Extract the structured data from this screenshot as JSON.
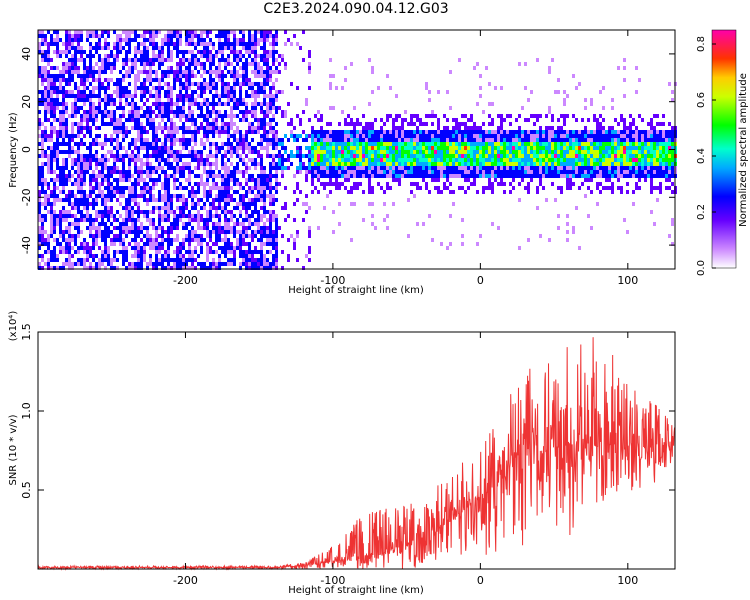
{
  "title": "C2E3.2024.090.04.12.G03",
  "chart_data": [
    {
      "type": "heatmap",
      "xlabel": "Height of straight line (km)",
      "ylabel": "Frequency (Hz)",
      "xlim": [
        -300,
        132
      ],
      "ylim": [
        -50,
        50
      ],
      "x_ticks": [
        -200,
        -100,
        0,
        100
      ],
      "y_ticks": [
        -40,
        -20,
        0,
        20,
        40
      ],
      "colorbar": {
        "label": "Normalized spectral amplitude",
        "range": [
          0,
          0.85
        ],
        "ticks": [
          "0.0",
          "0.2",
          "0.4",
          "0.6",
          "0.8"
        ],
        "tick_values": [
          0,
          0.2,
          0.4,
          0.6,
          0.8
        ]
      },
      "description_bands": [
        {
          "x": [
            -300,
            -138
          ],
          "y": [
            -50,
            50
          ],
          "level": 0.1
        },
        {
          "x": [
            -138,
            132
          ],
          "y": [
            -8,
            6
          ],
          "level": 0.35
        }
      ]
    },
    {
      "type": "line",
      "xlabel": "Height of straight line (km)",
      "ylabel": "SNR (10 * v/v)",
      "y_multiplier": "(x10⁴)",
      "xlim": [
        -300,
        132
      ],
      "ylim": [
        0,
        1.5
      ],
      "x_ticks": [
        -200,
        -100,
        0,
        100
      ],
      "y_ticks": [
        "0.5",
        "1.0",
        "1.5"
      ],
      "y_tick_values": [
        0.5,
        1.0,
        1.5
      ],
      "color": "#ee3333",
      "envelope": {
        "x": [
          -300,
          -140,
          -120,
          -100,
          -80,
          -60,
          -40,
          -20,
          0,
          20,
          30,
          40,
          60,
          80,
          100,
          132
        ],
        "mean": [
          0.01,
          0.01,
          0.02,
          0.05,
          0.08,
          0.12,
          0.2,
          0.3,
          0.45,
          0.62,
          0.8,
          0.75,
          0.78,
          0.8,
          0.78,
          0.8
        ],
        "max": [
          0.02,
          0.02,
          0.04,
          0.15,
          0.35,
          0.4,
          0.45,
          0.6,
          0.8,
          1.1,
          1.5,
          1.3,
          1.45,
          1.5,
          1.2,
          0.95
        ],
        "min": [
          0.0,
          0.0,
          0.0,
          0.01,
          0.0,
          0.0,
          0.0,
          0.0,
          0.05,
          0.15,
          0.1,
          0.35,
          0.2,
          0.4,
          0.4,
          0.65
        ]
      }
    }
  ]
}
